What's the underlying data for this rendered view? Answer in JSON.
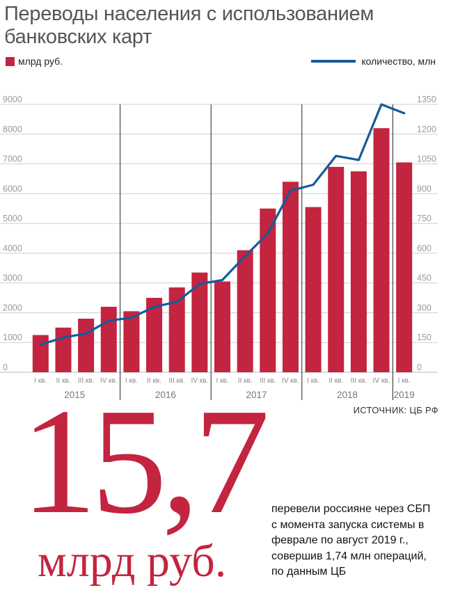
{
  "title": "Переводы населения с использованием банковских карт",
  "legend": {
    "bars_label": "млрд руб.",
    "line_label": "количество, млн"
  },
  "source": "ИСТОЧНИК: ЦБ РФ",
  "headline": {
    "number": "15,7",
    "unit": "млрд руб.",
    "description": "перевели россияне через СБП с момента запуска системы в феврале по август 2019 г., совершив 1,74 млн операций, по данным ЦБ"
  },
  "colors": {
    "bar": "#c3243f",
    "line": "#17599a",
    "accent": "#c3243f"
  },
  "chart_data": {
    "type": "bar",
    "categories": [
      "I кв.",
      "II кв.",
      "III кв.",
      "IV кв.",
      "I кв.",
      "II кв.",
      "III кв.",
      "IV кв.",
      "I кв.",
      "II кв.",
      "III кв.",
      "IV кв.",
      "I кв.",
      "II кв.",
      "III кв.",
      "IV кв.",
      "I кв."
    ],
    "years": [
      {
        "label": "2015",
        "count": 4
      },
      {
        "label": "2016",
        "count": 4
      },
      {
        "label": "2017",
        "count": 4
      },
      {
        "label": "2018",
        "count": 4
      },
      {
        "label": "2019",
        "count": 1
      }
    ],
    "series": [
      {
        "name": "млрд руб.",
        "type": "bar",
        "axis": "left",
        "values": [
          1250,
          1500,
          1800,
          2200,
          2050,
          2500,
          2850,
          3350,
          3050,
          4100,
          5500,
          6400,
          5550,
          6900,
          6750,
          8200,
          7050
        ]
      },
      {
        "name": "количество, млн",
        "type": "line",
        "axis": "right",
        "values": [
          140,
          175,
          195,
          260,
          275,
          330,
          355,
          445,
          465,
          585,
          700,
          915,
          945,
          1090,
          1070,
          1350,
          1305
        ]
      }
    ],
    "ylim_left": [
      0,
      9000
    ],
    "yticks_left": [
      0,
      1000,
      2000,
      3000,
      4000,
      5000,
      6000,
      7000,
      8000,
      9000
    ],
    "ylim_right": [
      0,
      1350
    ],
    "yticks_right": [
      0,
      150,
      300,
      450,
      600,
      750,
      900,
      1050,
      1200,
      1350
    ],
    "grid": true
  }
}
